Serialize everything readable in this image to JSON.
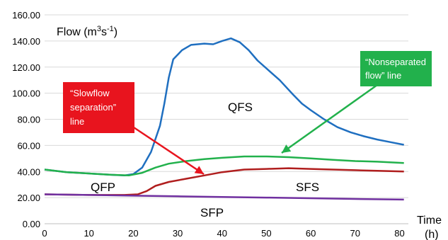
{
  "chart_data": {
    "type": "line",
    "y_axis_label": "Flow (m3s-1)",
    "y_axis_label_parts": {
      "base": "Flow (m",
      "sup1": "3",
      "mid": "s",
      "sup2": "-1",
      "end": ")"
    },
    "x_axis_label": {
      "line1": "Time",
      "line2": "(h)"
    },
    "xlim": [
      0,
      82
    ],
    "ylim": [
      0,
      160
    ],
    "x_ticks": [
      0,
      10,
      20,
      30,
      40,
      50,
      60,
      70,
      80
    ],
    "y_ticks": [
      0,
      20,
      40,
      60,
      80,
      100,
      120,
      140,
      160
    ],
    "y_tick_labels": [
      "0.00",
      "20.00",
      "40.00",
      "60.00",
      "80.00",
      "100.00",
      "120.00",
      "140.00",
      "160.00"
    ],
    "x_tick_labels": [
      "0",
      "10",
      "20",
      "30",
      "40",
      "50",
      "60",
      "70",
      "80"
    ],
    "grid": "horizontal",
    "series": [
      {
        "color": "#1f6fc0",
        "points": [
          [
            0,
            41.5
          ],
          [
            5,
            39.5
          ],
          [
            10,
            38.5
          ],
          [
            15,
            37.5
          ],
          [
            18,
            37
          ],
          [
            20,
            38
          ],
          [
            22,
            43
          ],
          [
            24,
            55
          ],
          [
            26,
            75
          ],
          [
            27,
            92
          ],
          [
            28,
            112
          ],
          [
            29,
            126
          ],
          [
            31,
            133
          ],
          [
            33,
            137
          ],
          [
            36,
            138
          ],
          [
            38,
            137.5
          ],
          [
            40,
            140
          ],
          [
            42,
            142
          ],
          [
            44,
            139
          ],
          [
            46,
            133
          ],
          [
            48,
            125
          ],
          [
            50,
            119
          ],
          [
            53,
            110
          ],
          [
            56,
            99
          ],
          [
            58,
            92
          ],
          [
            60,
            87
          ],
          [
            63,
            80
          ],
          [
            66,
            74
          ],
          [
            69,
            70
          ],
          [
            72,
            67
          ],
          [
            75,
            64.5
          ],
          [
            78,
            62.5
          ],
          [
            81,
            60.5
          ]
        ]
      },
      {
        "color": "#22b14c",
        "points": [
          [
            0,
            41.5
          ],
          [
            5,
            39.5
          ],
          [
            10,
            38.5
          ],
          [
            15,
            37.5
          ],
          [
            19,
            37
          ],
          [
            22,
            39
          ],
          [
            25,
            43
          ],
          [
            28,
            46
          ],
          [
            32,
            48
          ],
          [
            36,
            49.5
          ],
          [
            40,
            50.5
          ],
          [
            45,
            51.5
          ],
          [
            50,
            51.5
          ],
          [
            55,
            51
          ],
          [
            60,
            50
          ],
          [
            65,
            49
          ],
          [
            70,
            48
          ],
          [
            75,
            47.5
          ],
          [
            81,
            46.5
          ]
        ]
      },
      {
        "color": "#b01e1e",
        "points": [
          [
            0,
            22.5
          ],
          [
            10,
            22
          ],
          [
            18,
            22
          ],
          [
            21,
            22.5
          ],
          [
            23,
            25
          ],
          [
            25,
            29
          ],
          [
            28,
            32
          ],
          [
            32,
            34.5
          ],
          [
            36,
            37
          ],
          [
            40,
            39.5
          ],
          [
            45,
            41.5
          ],
          [
            50,
            42
          ],
          [
            55,
            42.5
          ],
          [
            60,
            42
          ],
          [
            65,
            41.5
          ],
          [
            70,
            41
          ],
          [
            75,
            40.5
          ],
          [
            81,
            40
          ]
        ]
      },
      {
        "color": "#7030a0",
        "points": [
          [
            0,
            22.5
          ],
          [
            10,
            22
          ],
          [
            20,
            21.5
          ],
          [
            30,
            21
          ],
          [
            40,
            20.5
          ],
          [
            50,
            20
          ],
          [
            60,
            19.5
          ],
          [
            70,
            19
          ],
          [
            81,
            18.5
          ]
        ]
      }
    ],
    "region_labels": [
      "QFS",
      "QFP",
      "SFS",
      "SFP"
    ],
    "annotations": [
      {
        "id": "slowflow",
        "lines": [
          "“Slowflow",
          "separation”",
          "line"
        ],
        "box_color": "#e8141e",
        "arrow_color": "#e8141e",
        "target": [
          35,
          38
        ]
      },
      {
        "id": "nonseparated",
        "lines": [
          "“Nonseparated",
          "flow” line"
        ],
        "box_color": "#22b14c",
        "arrow_color": "#22b14c",
        "target": [
          51,
          52
        ]
      }
    ]
  }
}
